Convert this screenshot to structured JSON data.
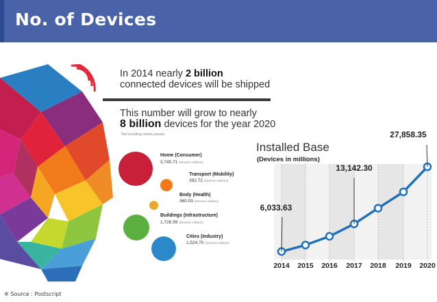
{
  "header": {
    "title": "No. of Devices"
  },
  "infographic": {
    "headline_pre": "In 2014 nearly ",
    "headline_bold": "2 billion",
    "headline_post": "connected devices will be shipped",
    "growth_pre": "This number will grow to nearly",
    "growth_bold": "8 billion",
    "growth_post": " devices for the year 2020",
    "footnote": "*Not including mobile phones",
    "unit_note": "(Devices millions)",
    "categories": [
      {
        "name": "Home (Consumer)",
        "value": "3,745.71",
        "color": "#c8203b"
      },
      {
        "name": "Transport (Mobility)",
        "value": "392.72",
        "color": "#f07a1c"
      },
      {
        "name": "Body (Health)",
        "value": "360.03",
        "color": "#e8a82a"
      },
      {
        "name": "Buildings (Infrastructure)",
        "value": "1,726.59",
        "color": "#5cb040"
      },
      {
        "name": "Cities (Industry)",
        "value": "1,524.70",
        "color": "#2b88c9"
      }
    ]
  },
  "chart_data": {
    "type": "line",
    "title": "Installed Base",
    "subtitle": "(Devices in millions)",
    "x": [
      "2014",
      "2015",
      "2016",
      "2017",
      "2018",
      "2019",
      "2020"
    ],
    "series": [
      {
        "values": [
          6033.63,
          7700,
          9950,
          13142.3,
          17200,
          21400,
          27858.35
        ]
      }
    ],
    "data_labels": [
      {
        "x": "2014",
        "text": "6,033.63"
      },
      {
        "x": "2017",
        "text": "13,142.30"
      },
      {
        "x": "2020",
        "text": "27,858.35"
      }
    ],
    "ylim": [
      5000,
      30000
    ],
    "line_color": "#1f70b8",
    "grid": "vertical"
  },
  "footer": {
    "source": "※ Source : Postscript"
  }
}
